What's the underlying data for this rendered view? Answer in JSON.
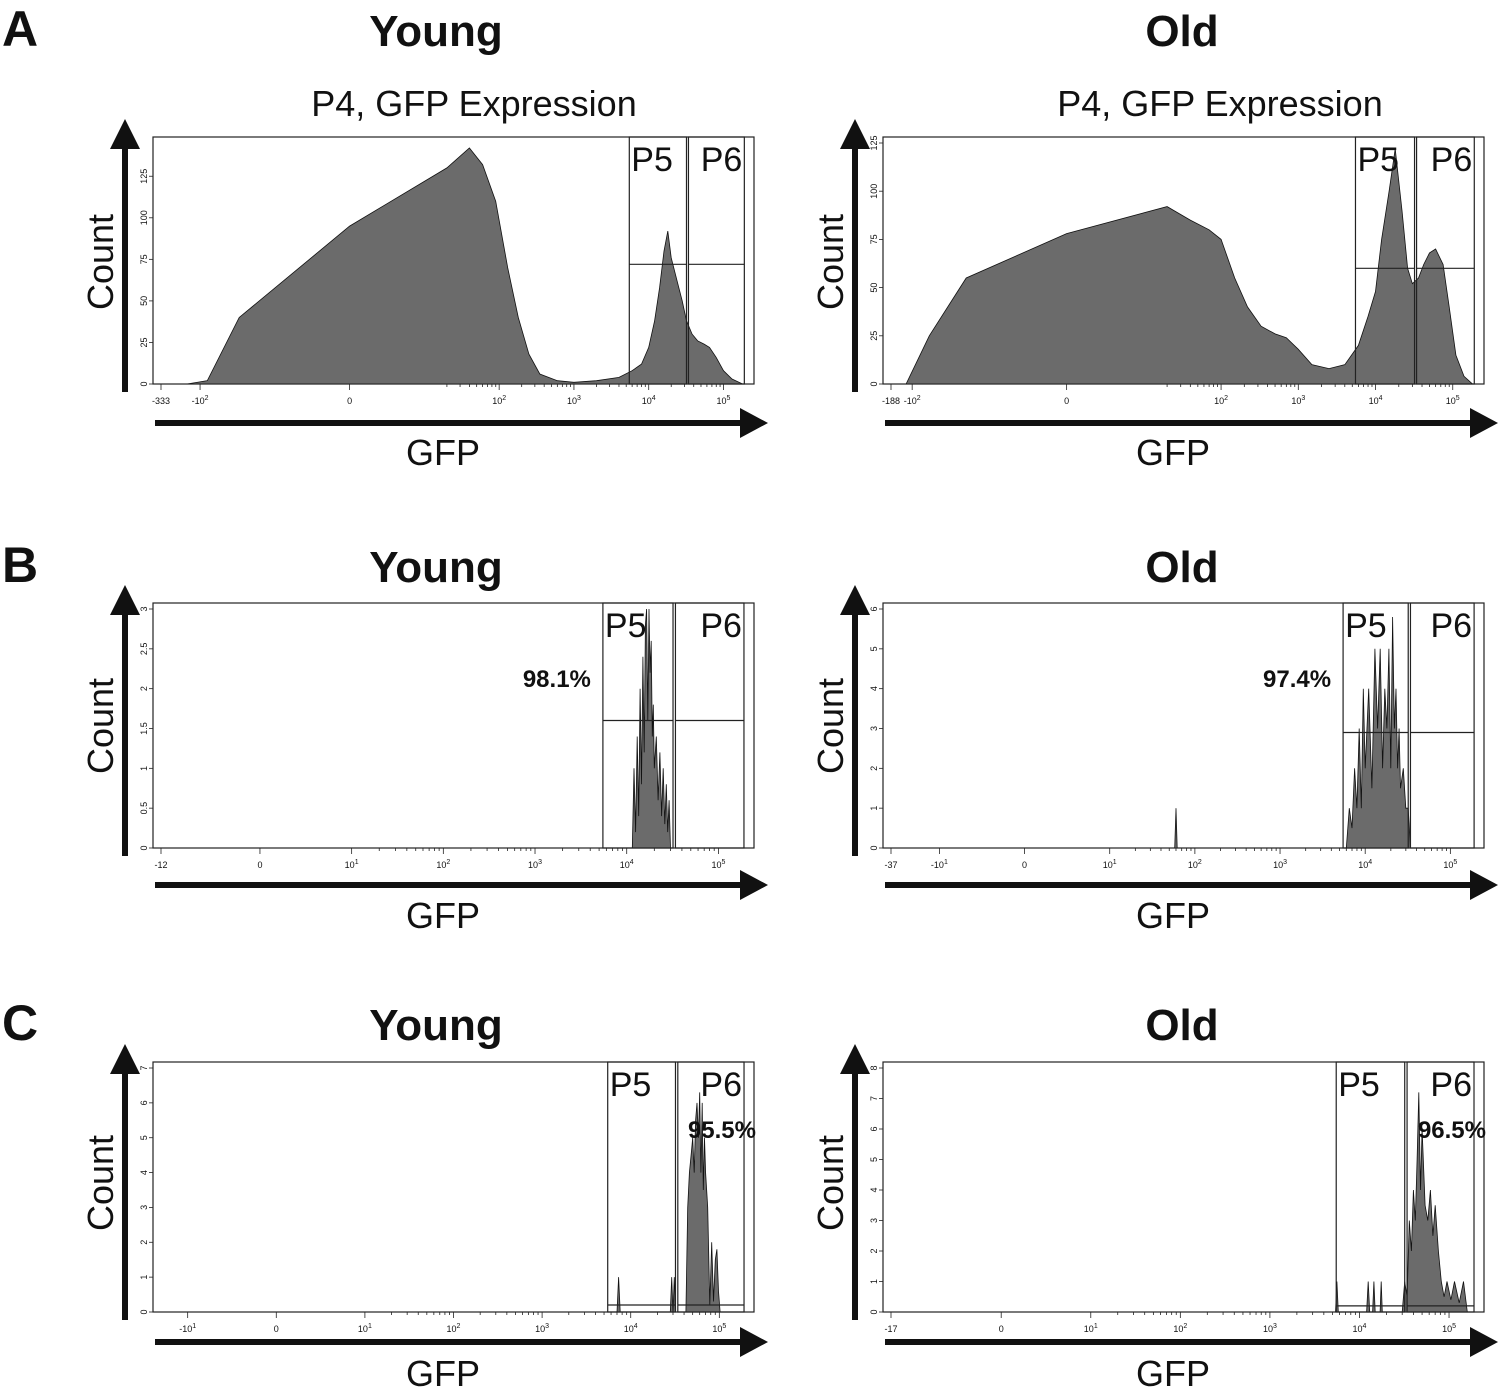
{
  "figure": {
    "panel_letters": [
      "A",
      "B",
      "C"
    ]
  },
  "chart_data": [
    {
      "type": "area",
      "panel": "A",
      "title": "Young",
      "subtitle": "P4, GFP Expression",
      "xlabel": "GFP",
      "ylabel": "Count",
      "xscale": "biexponential",
      "xlim": [
        -333,
        200000
      ],
      "ylim": [
        0,
        145
      ],
      "y_ticks": [
        0,
        25,
        50,
        75,
        100,
        125
      ],
      "x_ticks": [
        "-333",
        "-10^2",
        "0",
        "10^2",
        "10^3",
        "10^4",
        "10^5"
      ],
      "x_tick_values": [
        -333,
        -100,
        0,
        100,
        1000,
        10000,
        100000
      ],
      "gates": [
        {
          "name": "P5",
          "x_start": 5500,
          "x_end": 32000,
          "y_level": 72
        },
        {
          "name": "P6",
          "x_start": 34000,
          "x_end": 190000,
          "y_level": 72
        }
      ],
      "percent_label": "",
      "series": [
        {
          "name": "GFP",
          "x": [
            -150,
            -80,
            -30,
            0,
            20,
            40,
            60,
            90,
            130,
            180,
            250,
            350,
            600,
            1000,
            2000,
            4000,
            6000,
            8000,
            10000,
            12000,
            14000,
            16000,
            18000,
            20000,
            24000,
            28000,
            32000,
            38000,
            45000,
            55000,
            65000,
            80000,
            100000,
            130000,
            180000
          ],
          "values": [
            0,
            2,
            40,
            95,
            130,
            142,
            132,
            110,
            70,
            40,
            18,
            6,
            2,
            1,
            2,
            4,
            8,
            12,
            22,
            38,
            58,
            80,
            92,
            76,
            62,
            50,
            38,
            30,
            26,
            24,
            22,
            16,
            8,
            3,
            0
          ]
        }
      ]
    },
    {
      "type": "area",
      "panel": "A",
      "title": "Old",
      "subtitle": "P4, GFP Expression",
      "xlabel": "GFP",
      "ylabel": "Count",
      "xscale": "biexponential",
      "xlim": [
        -188,
        200000
      ],
      "ylim": [
        0,
        125
      ],
      "y_ticks": [
        0,
        25,
        50,
        75,
        100,
        125
      ],
      "x_ticks": [
        "-188",
        "-10^2",
        "0",
        "10^2",
        "10^3",
        "10^4",
        "10^5"
      ],
      "x_tick_values": [
        -188,
        -100,
        0,
        100,
        1000,
        10000,
        100000
      ],
      "gates": [
        {
          "name": "P5",
          "x_start": 5500,
          "x_end": 32000,
          "y_level": 60
        },
        {
          "name": "P6",
          "x_start": 34000,
          "x_end": 190000,
          "y_level": 60
        }
      ],
      "percent_label": "",
      "series": [
        {
          "name": "GFP",
          "x": [
            -120,
            -60,
            -20,
            0,
            20,
            40,
            70,
            100,
            150,
            220,
            330,
            500,
            700,
            1000,
            1500,
            2500,
            4000,
            6000,
            8000,
            10000,
            12000,
            15000,
            18000,
            22000,
            26000,
            30000,
            36000,
            42000,
            50000,
            60000,
            75000,
            90000,
            110000,
            140000,
            180000
          ],
          "values": [
            0,
            25,
            55,
            78,
            92,
            85,
            80,
            75,
            55,
            40,
            30,
            26,
            24,
            18,
            10,
            8,
            10,
            20,
            35,
            48,
            75,
            100,
            122,
            90,
            60,
            52,
            55,
            62,
            68,
            70,
            62,
            40,
            15,
            4,
            0
          ]
        }
      ]
    },
    {
      "type": "area",
      "panel": "B",
      "title": "Young",
      "subtitle": "",
      "xlabel": "GFP",
      "ylabel": "Count",
      "xscale": "biexponential",
      "xlim": [
        -12,
        200000
      ],
      "ylim": [
        0,
        3
      ],
      "y_ticks": [
        0,
        0.5,
        1,
        1.5,
        2,
        2.5,
        3
      ],
      "x_ticks": [
        "-12",
        "0",
        "10^1",
        "10^2",
        "10^3",
        "10^4",
        "10^5"
      ],
      "x_tick_values": [
        -12,
        0,
        10,
        100,
        1000,
        10000,
        100000
      ],
      "gates": [
        {
          "name": "P5",
          "x_start": 5500,
          "x_end": 32000,
          "y_level": 1.6
        },
        {
          "name": "P6",
          "x_start": 34000,
          "x_end": 190000,
          "y_level": 1.6
        }
      ],
      "percent_label": "98.1%",
      "series": [
        {
          "name": "GFP",
          "x": [
            11500,
            12000,
            12500,
            13000,
            13500,
            14000,
            14500,
            15000,
            15500,
            16000,
            16500,
            17000,
            17500,
            18000,
            18500,
            19000,
            19500,
            20000,
            21000,
            22000,
            23000,
            24000,
            25000,
            26000,
            27000,
            28000,
            29000,
            30000
          ],
          "values": [
            0,
            1.0,
            0.2,
            1.4,
            0.4,
            2.0,
            0.8,
            2.4,
            1.2,
            2.8,
            3.0,
            1.6,
            3.0,
            2.2,
            2.6,
            1.4,
            1.8,
            1.0,
            1.4,
            0.6,
            1.2,
            0.4,
            1.0,
            0.3,
            0.8,
            0.2,
            0.6,
            0
          ]
        }
      ]
    },
    {
      "type": "area",
      "panel": "B",
      "title": "Old",
      "subtitle": "",
      "xlabel": "GFP",
      "ylabel": "Count",
      "xscale": "biexponential",
      "xlim": [
        -37,
        200000
      ],
      "ylim": [
        0,
        6
      ],
      "y_ticks": [
        0,
        1,
        2,
        3,
        4,
        5,
        6
      ],
      "x_ticks": [
        "-37",
        "-10^1",
        "0",
        "10^1",
        "10^2",
        "10^3",
        "10^4",
        "10^5"
      ],
      "x_tick_values": [
        -37,
        -10,
        0,
        10,
        100,
        1000,
        10000,
        100000
      ],
      "gates": [
        {
          "name": "P5",
          "x_start": 5500,
          "x_end": 32000,
          "y_level": 2.9
        },
        {
          "name": "P6",
          "x_start": 34000,
          "x_end": 190000,
          "y_level": 2.9
        }
      ],
      "percent_label": "97.4%",
      "series": [
        {
          "name": "GFP",
          "x": [
            58,
            60,
            62,
            6000,
            6500,
            7000,
            7500,
            8000,
            8500,
            9000,
            9500,
            10000,
            11000,
            12000,
            13000,
            14000,
            15000,
            16000,
            17000,
            18000,
            19000,
            20000,
            21000,
            22000,
            23000,
            24000,
            25000,
            26000,
            28000,
            30000,
            32000,
            34000
          ],
          "values": [
            0,
            1,
            0,
            0,
            1,
            0.5,
            2,
            1,
            3,
            1,
            4,
            2,
            4,
            1.5,
            5,
            3,
            5,
            2,
            4,
            3,
            5,
            2,
            5.8,
            3,
            4,
            2,
            3,
            1.5,
            2,
            1,
            1,
            0
          ]
        }
      ]
    },
    {
      "type": "area",
      "panel": "C",
      "title": "Young",
      "subtitle": "",
      "xlabel": "GFP",
      "ylabel": "Count",
      "xscale": "biexponential",
      "xlim": [
        -20,
        200000
      ],
      "ylim": [
        0,
        7
      ],
      "y_ticks": [
        0,
        1,
        2,
        3,
        4,
        5,
        6,
        7
      ],
      "x_ticks": [
        "-10^1",
        "0",
        "10^1",
        "10^2",
        "10^3",
        "10^4",
        "10^5"
      ],
      "x_tick_values": [
        -10,
        0,
        10,
        100,
        1000,
        10000,
        100000
      ],
      "gates": [
        {
          "name": "P5",
          "x_start": 5500,
          "x_end": 32000,
          "y_level": 0.2
        },
        {
          "name": "P6",
          "x_start": 34000,
          "x_end": 190000,
          "y_level": 0.2
        }
      ],
      "percent_label": "95.5%",
      "series": [
        {
          "name": "GFP",
          "x": [
            7000,
            7300,
            7600,
            28000,
            29000,
            30000,
            31000,
            32000,
            42000,
            44000,
            46000,
            48000,
            50000,
            52000,
            54000,
            56000,
            58000,
            60000,
            62000,
            64000,
            66000,
            68000,
            70000,
            74000,
            78000,
            82000,
            86000,
            90000,
            94000,
            98000,
            102000
          ],
          "values": [
            0,
            1,
            0,
            0,
            1,
            0,
            1,
            0,
            0,
            3,
            4,
            4.5,
            5,
            4,
            5.5,
            6,
            5,
            6.3,
            4,
            6,
            3.5,
            5,
            4,
            3,
            0.2,
            2,
            0.3,
            1.5,
            1.8,
            0.6,
            0
          ]
        }
      ]
    },
    {
      "type": "area",
      "panel": "C",
      "title": "Old",
      "subtitle": "",
      "xlabel": "GFP",
      "ylabel": "Count",
      "xscale": "biexponential",
      "xlim": [
        -17,
        200000
      ],
      "ylim": [
        0,
        8
      ],
      "y_ticks": [
        0,
        1,
        2,
        3,
        4,
        5,
        6,
        7,
        8
      ],
      "x_ticks": [
        "-17",
        "0",
        "10^1",
        "10^2",
        "10^3",
        "10^4",
        "10^5"
      ],
      "x_tick_values": [
        -17,
        0,
        10,
        100,
        1000,
        10000,
        100000
      ],
      "gates": [
        {
          "name": "P5",
          "x_start": 5500,
          "x_end": 32000,
          "y_level": 0.2
        },
        {
          "name": "P6",
          "x_start": 34000,
          "x_end": 190000,
          "y_level": 0.2
        }
      ],
      "percent_label": "96.5%",
      "series": [
        {
          "name": "GFP",
          "x": [
            5400,
            5600,
            5800,
            12000,
            12500,
            13000,
            14000,
            14500,
            15000,
            17000,
            17500,
            18000,
            30000,
            32000,
            34000,
            36000,
            38000,
            40000,
            42000,
            44000,
            46000,
            48000,
            50000,
            54000,
            58000,
            62000,
            66000,
            70000,
            76000,
            82000,
            88000,
            95000,
            105000,
            115000,
            130000,
            145000,
            160000
          ],
          "values": [
            0,
            1,
            0,
            0,
            1,
            0,
            0,
            1,
            0,
            0,
            1,
            0,
            0,
            1,
            0.5,
            3,
            2,
            4,
            3,
            5,
            7.2,
            4,
            6,
            3.5,
            3,
            4,
            2.5,
            3.5,
            2,
            1,
            0.5,
            1,
            0.4,
            1,
            0.3,
            1,
            0
          ]
        }
      ]
    }
  ]
}
